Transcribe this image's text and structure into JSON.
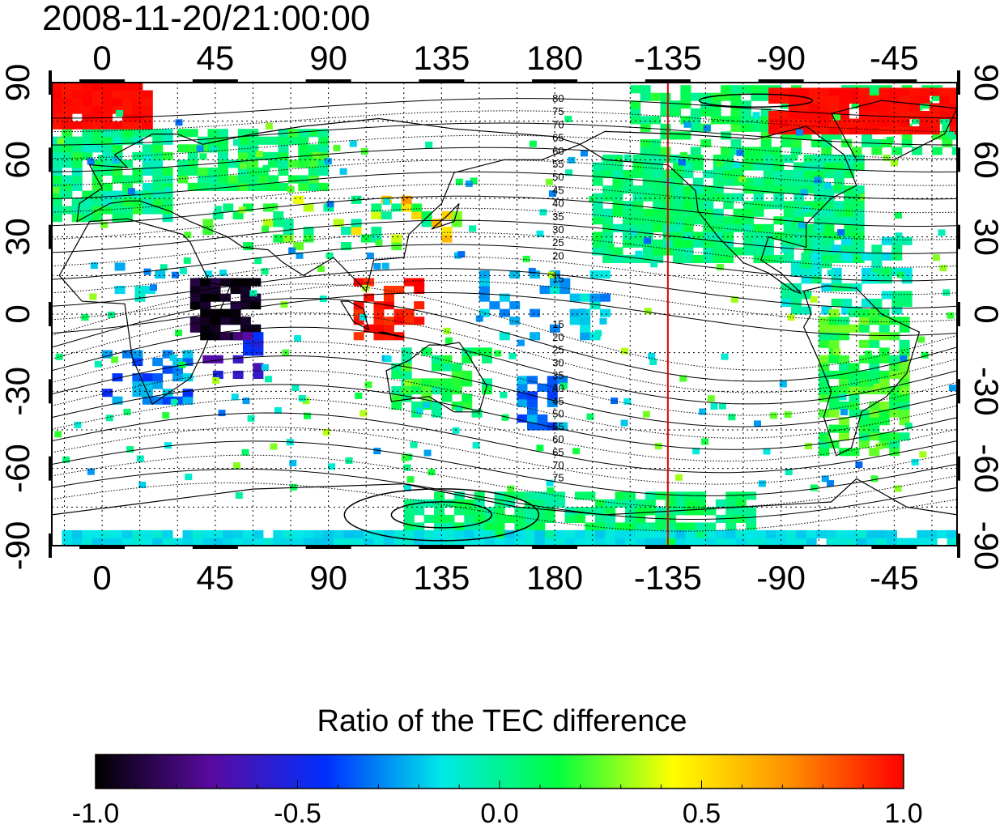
{
  "title": "2008-11-20/21:00:00",
  "map": {
    "lon_ticks": [
      "0",
      "45",
      "90",
      "135",
      "180",
      "-135",
      "-90",
      "-45"
    ],
    "lat_ticks": [
      "90",
      "60",
      "30",
      "0",
      "-30",
      "-60",
      "-90"
    ],
    "contour_labels_north": [
      "80",
      "75",
      "70",
      "65",
      "60",
      "55",
      "50",
      "45",
      "40",
      "35",
      "30",
      "25",
      "20",
      "15"
    ],
    "contour_labels_south": [
      "15",
      "20",
      "25",
      "30",
      "35",
      "40",
      "45",
      "50",
      "55",
      "60",
      "65",
      "70",
      "75"
    ],
    "marker_line_lon": -135,
    "marker_line_color": "#e00000",
    "land_color": "#000000",
    "contour_color": "#000000"
  },
  "colorbar": {
    "title": "Ratio of the TEC difference",
    "ticks": [
      "-1.0",
      "-0.5",
      "0.0",
      "0.5",
      "1.0"
    ],
    "stops": [
      "#000000",
      "#5a0aa0",
      "#0030ff",
      "#00e8e8",
      "#00ff40",
      "#ffff00",
      "#ff9000",
      "#ff0000"
    ]
  }
}
